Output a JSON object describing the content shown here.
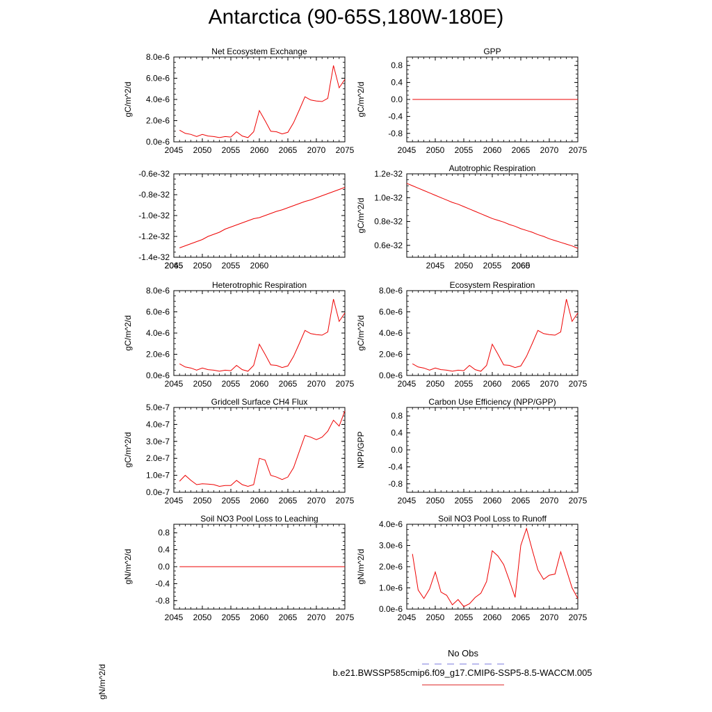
{
  "page_title": "Antarctica (90-65S,180W-180E)",
  "legend": {
    "obs_label": "No Obs",
    "obs_color": "#7777dd",
    "model_label": "b.e21.BWSSP585cmip6.f09_g17.CMIP6-SSP5-8.5-WACCM.005",
    "model_color": "#dd2222"
  },
  "stray_label": "gN/m^2/d",
  "line_color": "#ee0000",
  "chart_data": [
    {
      "id": "nee",
      "type": "line",
      "title": "Net Ecosystem Exchange",
      "ylabel": "gC/m^2/d",
      "xlim": [
        2045,
        2075
      ],
      "ylim": [
        0,
        8e-06
      ],
      "xticks": [
        "2045",
        "2050",
        "2055",
        "2060",
        "2065",
        "2070",
        "2075"
      ],
      "yticks": [
        "0.0e-6",
        "2.0e-6",
        "4.0e-6",
        "6.0e-6",
        "8.0e-6"
      ],
      "x": [
        2046,
        2047,
        2048,
        2049,
        2050,
        2051,
        2052,
        2053,
        2054,
        2055,
        2056,
        2057,
        2058,
        2059,
        2060,
        2061,
        2062,
        2063,
        2064,
        2065,
        2066,
        2067,
        2068,
        2069,
        2070,
        2071,
        2072,
        2073,
        2074,
        2075
      ],
      "y": [
        1.1e-06,
        8e-07,
        7e-07,
        5e-07,
        7e-07,
        5.5e-07,
        5e-07,
        4e-07,
        5e-07,
        4.5e-07,
        9.5e-07,
        5.5e-07,
        4e-07,
        9.5e-07,
        2.95e-06,
        2e-06,
        1e-06,
        9.5e-07,
        7.5e-07,
        9e-07,
        1.8e-06,
        3e-06,
        4.25e-06,
        3.95e-06,
        3.85e-06,
        3.8e-06,
        4.1e-06,
        7.2e-06,
        5.1e-06,
        5.9e-06
      ]
    },
    {
      "id": "gpp",
      "type": "line",
      "title": "GPP",
      "ylabel": "gC/m^2/d",
      "xlim": [
        2045,
        2075
      ],
      "ylim": [
        -1.0,
        1.0
      ],
      "xticks": [
        "2045",
        "2050",
        "2055",
        "2060",
        "2065",
        "2070",
        "2075"
      ],
      "yticks": [
        "-0.8",
        "-0.4",
        "0.0",
        "0.4",
        "0.8"
      ],
      "x": [
        2046,
        2075
      ],
      "y": [
        0,
        0
      ]
    },
    {
      "id": "unnamed",
      "type": "line",
      "title": "",
      "ylabel": "",
      "xlim": [
        2045,
        2075
      ],
      "ylim": [
        -1.4e-32,
        -6e-33
      ],
      "xticks": [
        "2045",
        "2050",
        "2055",
        "2060"
      ],
      "xticks_overlay": [
        "2065"
      ],
      "yticks": [
        "-1.4e-32",
        "-1.2e-32",
        "-1.0e-32",
        "-0.8e-32",
        "-0.6e-32"
      ],
      "x": [
        2046,
        2047,
        2048,
        2049,
        2050,
        2051,
        2052,
        2053,
        2054,
        2055,
        2056,
        2057,
        2058,
        2059,
        2060,
        2061,
        2062,
        2063,
        2064,
        2065,
        2066,
        2067,
        2068,
        2069,
        2070,
        2071,
        2072,
        2073,
        2074,
        2075
      ],
      "y": [
        -1.31e-32,
        -1.29e-32,
        -1.27e-32,
        -1.25e-32,
        -1.23e-32,
        -1.2e-32,
        -1.18e-32,
        -1.16e-32,
        -1.13e-32,
        -1.11e-32,
        -1.09e-32,
        -1.07e-32,
        -1.05e-32,
        -1.03e-32,
        -1.02e-32,
        -1e-32,
        -9.8e-33,
        -9.6e-33,
        -9.45e-33,
        -9.25e-33,
        -9.05e-33,
        -8.85e-33,
        -8.65e-33,
        -8.5e-33,
        -8.3e-33,
        -8.1e-33,
        -7.9e-33,
        -7.7e-33,
        -7.5e-33,
        -7.3e-33
      ]
    },
    {
      "id": "ar",
      "type": "line",
      "title": "Autotrophic Respiration",
      "ylabel": "gC/m^2/d",
      "xlim": [
        2040,
        2070
      ],
      "ylim": [
        5e-33,
        1.2e-32
      ],
      "xticks": [
        "2045",
        "2050",
        "2055",
        "2060"
      ],
      "xticks_overlay": [
        "2065"
      ],
      "yticks": [
        "0.6e-32",
        "0.8e-32",
        "1.0e-32",
        "1.2e-32"
      ],
      "x": [
        2040,
        2041,
        2042,
        2043,
        2044,
        2045,
        2046,
        2047,
        2048,
        2049,
        2050,
        2051,
        2052,
        2053,
        2054,
        2055,
        2056,
        2057,
        2058,
        2059,
        2060,
        2061,
        2062,
        2063,
        2064,
        2065,
        2066,
        2067,
        2068,
        2069,
        2070
      ],
      "y": [
        1.12e-32,
        1.1e-32,
        1.08e-32,
        1.06e-32,
        1.04e-32,
        1.02e-32,
        1e-32,
        9.8e-33,
        9.6e-33,
        9.45e-33,
        9.25e-33,
        9.05e-33,
        8.85e-33,
        8.65e-33,
        8.45e-33,
        8.25e-33,
        8.1e-33,
        7.95e-33,
        7.75e-33,
        7.6e-33,
        7.4e-33,
        7.25e-33,
        7.1e-33,
        6.9e-33,
        6.75e-33,
        6.55e-33,
        6.4e-33,
        6.25e-33,
        6.1e-33,
        5.95e-33,
        5.75e-33
      ]
    },
    {
      "id": "hr",
      "type": "line",
      "title": "Heterotrophic Respiration",
      "ylabel": "gC/m^2/d",
      "xlim": [
        2045,
        2075
      ],
      "ylim": [
        0,
        8e-06
      ],
      "xticks": [
        "2045",
        "2050",
        "2055",
        "2060",
        "2065",
        "2070",
        "2075"
      ],
      "yticks": [
        "0.0e-6",
        "2.0e-6",
        "4.0e-6",
        "6.0e-6",
        "8.0e-6"
      ],
      "x": [
        2046,
        2047,
        2048,
        2049,
        2050,
        2051,
        2052,
        2053,
        2054,
        2055,
        2056,
        2057,
        2058,
        2059,
        2060,
        2061,
        2062,
        2063,
        2064,
        2065,
        2066,
        2067,
        2068,
        2069,
        2070,
        2071,
        2072,
        2073,
        2074,
        2075
      ],
      "y": [
        1.1e-06,
        8e-07,
        7e-07,
        5e-07,
        7e-07,
        5.5e-07,
        5e-07,
        4e-07,
        5e-07,
        4.5e-07,
        9.5e-07,
        5.5e-07,
        4e-07,
        9.5e-07,
        2.95e-06,
        2e-06,
        1e-06,
        9.5e-07,
        7.5e-07,
        9e-07,
        1.8e-06,
        3e-06,
        4.25e-06,
        3.95e-06,
        3.85e-06,
        3.8e-06,
        4.1e-06,
        7.2e-06,
        5.1e-06,
        5.9e-06
      ]
    },
    {
      "id": "er",
      "type": "line",
      "title": "Ecosystem Respiration",
      "ylabel": "gC/m^2/d",
      "xlim": [
        2045,
        2075
      ],
      "ylim": [
        0,
        8e-06
      ],
      "xticks": [
        "2045",
        "2050",
        "2055",
        "2060",
        "2065",
        "2070",
        "2075"
      ],
      "yticks": [
        "0.0e-6",
        "2.0e-6",
        "4.0e-6",
        "6.0e-6",
        "8.0e-6"
      ],
      "x": [
        2046,
        2047,
        2048,
        2049,
        2050,
        2051,
        2052,
        2053,
        2054,
        2055,
        2056,
        2057,
        2058,
        2059,
        2060,
        2061,
        2062,
        2063,
        2064,
        2065,
        2066,
        2067,
        2068,
        2069,
        2070,
        2071,
        2072,
        2073,
        2074,
        2075
      ],
      "y": [
        1.1e-06,
        8e-07,
        7e-07,
        5e-07,
        7e-07,
        5.5e-07,
        5e-07,
        4e-07,
        5e-07,
        4.5e-07,
        9.5e-07,
        5.5e-07,
        4e-07,
        9.5e-07,
        2.95e-06,
        2e-06,
        1e-06,
        9.5e-07,
        7.5e-07,
        9e-07,
        1.8e-06,
        3e-06,
        4.25e-06,
        3.95e-06,
        3.85e-06,
        3.8e-06,
        4.1e-06,
        7.2e-06,
        5.1e-06,
        5.9e-06
      ]
    },
    {
      "id": "ch4",
      "type": "line",
      "title": "Gridcell Surface CH4 Flux",
      "ylabel": "gC/m^2/d",
      "xlim": [
        2045,
        2075
      ],
      "ylim": [
        0,
        5e-07
      ],
      "xticks": [
        "2045",
        "2050",
        "2055",
        "2060",
        "2065",
        "2070",
        "2075"
      ],
      "yticks": [
        "0.0e-7",
        "1.0e-7",
        "2.0e-7",
        "3.0e-7",
        "4.0e-7",
        "5.0e-7"
      ],
      "x": [
        2046,
        2047,
        2048,
        2049,
        2050,
        2051,
        2052,
        2053,
        2054,
        2055,
        2056,
        2057,
        2058,
        2059,
        2060,
        2061,
        2062,
        2063,
        2064,
        2065,
        2066,
        2067,
        2068,
        2069,
        2070,
        2071,
        2072,
        2073,
        2074,
        2075
      ],
      "y": [
        6.5e-08,
        1e-07,
        7e-08,
        4.5e-08,
        5e-08,
        4.8e-08,
        4.5e-08,
        3.5e-08,
        4e-08,
        4e-08,
        7e-08,
        4.5e-08,
        3.5e-08,
        4.5e-08,
        2e-07,
        1.9e-07,
        1e-07,
        9e-08,
        7.5e-08,
        9e-08,
        1.45e-07,
        2.4e-07,
        3.35e-07,
        3.25e-07,
        3.1e-07,
        3.25e-07,
        3.6e-07,
        4.25e-07,
        3.9e-07,
        4.8e-07
      ]
    },
    {
      "id": "cue",
      "type": "line",
      "title": "Carbon Use Efficiency (NPP/GPP)",
      "ylabel": "NPP/GPP",
      "xlim": [
        2045,
        2075
      ],
      "ylim": [
        -1.0,
        1.0
      ],
      "xticks": [
        "2045",
        "2050",
        "2055",
        "2060",
        "2065",
        "2070",
        "2075"
      ],
      "yticks": [
        "-0.8",
        "-0.4",
        "0.0",
        "0.4",
        "0.8"
      ],
      "x": [],
      "y": []
    },
    {
      "id": "leach",
      "type": "line",
      "title": "Soil NO3 Pool Loss to Leaching",
      "ylabel": "gN/m^2/d",
      "xlim": [
        2045,
        2075
      ],
      "ylim": [
        -1.0,
        1.0
      ],
      "xticks": [
        "2045",
        "2050",
        "2055",
        "2060",
        "2065",
        "2070",
        "2075"
      ],
      "yticks": [
        "-0.8",
        "-0.4",
        "0.0",
        "0.4",
        "0.8"
      ],
      "x": [
        2046,
        2075
      ],
      "y": [
        0,
        0
      ]
    },
    {
      "id": "runoff",
      "type": "line",
      "title": "Soil NO3 Pool Loss to Runoff",
      "ylabel": "gN/m^2/d",
      "xlim": [
        2045,
        2075
      ],
      "ylim": [
        0,
        4e-06
      ],
      "xticks": [
        "2045",
        "2050",
        "2055",
        "2060",
        "2065",
        "2070",
        "2075"
      ],
      "yticks": [
        "0.0e-6",
        "1.0e-6",
        "2.0e-6",
        "3.0e-6",
        "4.0e-6"
      ],
      "x": [
        2046,
        2047,
        2048,
        2049,
        2050,
        2051,
        2052,
        2053,
        2054,
        2055,
        2056,
        2057,
        2058,
        2059,
        2060,
        2061,
        2062,
        2063,
        2064,
        2065,
        2066,
        2067,
        2068,
        2069,
        2070,
        2071,
        2072,
        2073,
        2074,
        2075
      ],
      "y": [
        2.6e-06,
        9e-07,
        5e-07,
        9.5e-07,
        1.75e-06,
        8e-07,
        6.5e-07,
        2e-07,
        4.5e-07,
        1.2e-07,
        2.5e-07,
        5.5e-07,
        7.5e-07,
        1.3e-06,
        2.75e-06,
        2.5e-06,
        2.1e-06,
        1.35e-06,
        5.5e-07,
        3e-06,
        3.8e-06,
        2.8e-06,
        1.85e-06,
        1.4e-06,
        1.6e-06,
        1.65e-06,
        2.7e-06,
        1.85e-06,
        1e-06,
        5e-07
      ]
    }
  ]
}
